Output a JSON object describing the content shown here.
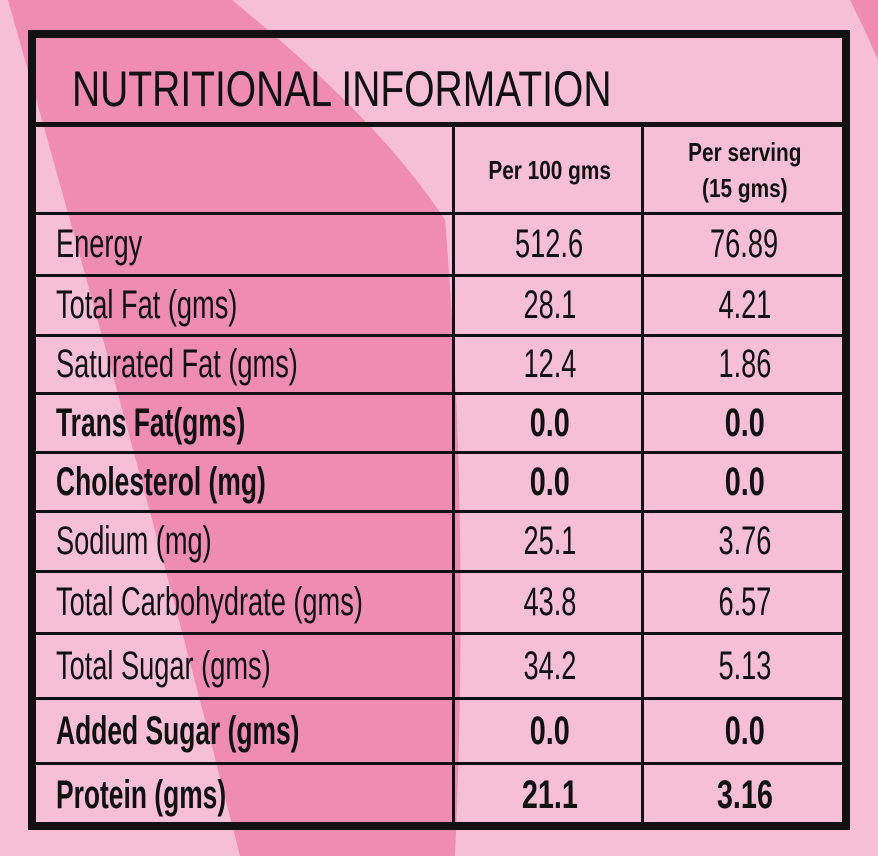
{
  "colors": {
    "background_light": "#f7bfd3",
    "background_band": "#ef8db0",
    "border": "#111111"
  },
  "title": "NUTRITIONAL INFORMATION",
  "columns": [
    "",
    "Per 100 gms",
    "Per serving",
    "(15 gms)"
  ],
  "rows": [
    {
      "label": "Energy",
      "per100": "512.6",
      "serving": "76.89",
      "bold": false
    },
    {
      "label": "Total Fat (gms)",
      "per100": "28.1",
      "serving": "4.21",
      "bold": false
    },
    {
      "label": "Saturated Fat (gms)",
      "per100": "12.4",
      "serving": "1.86",
      "bold": false
    },
    {
      "label": "Trans Fat(gms)",
      "per100": "0.0",
      "serving": "0.0",
      "bold": true
    },
    {
      "label": "Cholesterol (mg)",
      "per100": "0.0",
      "serving": "0.0",
      "bold": true
    },
    {
      "label": "Sodium (mg)",
      "per100": "25.1",
      "serving": "3.76",
      "bold": false
    },
    {
      "label": "Total Carbohydrate (gms)",
      "per100": "43.8",
      "serving": "6.57",
      "bold": false
    },
    {
      "label": "Total Sugar (gms)",
      "per100": "34.2",
      "serving": "5.13",
      "bold": false
    },
    {
      "label": "Added Sugar (gms)",
      "per100": "0.0",
      "serving": "0.0",
      "bold": true
    },
    {
      "label": "Protein (gms)",
      "per100": "21.1",
      "serving": "3.16",
      "bold": true
    }
  ]
}
